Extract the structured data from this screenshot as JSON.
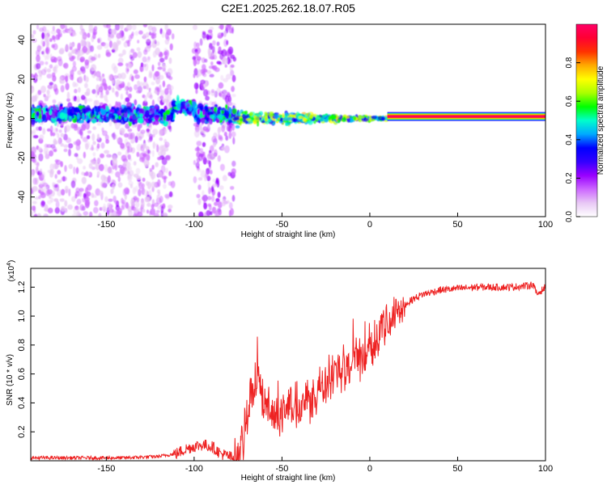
{
  "chart_data": [
    {
      "type": "heatmap",
      "title": "C2E1.2025.262.18.07.R05",
      "xlabel": "Height of straight line (km)",
      "ylabel": "Frequency (Hz)",
      "xlim": [
        -193,
        100
      ],
      "ylim": [
        -50,
        48
      ],
      "xticks": [
        -150,
        -100,
        -50,
        0,
        50,
        100
      ],
      "yticks": [
        -40,
        -20,
        0,
        20,
        40
      ],
      "colorbar": {
        "label": "Normalized spectral amplitude",
        "range": [
          0,
          1
        ],
        "ticks": [
          "0.0",
          "0.2",
          "0.4",
          "0.6",
          "0.8"
        ],
        "colors": [
          "#ffffff",
          "#e8c8f5",
          "#cc66ff",
          "#9900ff",
          "#3300ff",
          "#0000ff",
          "#00aaff",
          "#00ffcc",
          "#00ff00",
          "#aaff00",
          "#ffff00",
          "#ffaa00",
          "#ff3300",
          "#ff0033",
          "#ff0066"
        ]
      },
      "regions": [
        {
          "name": "diffuse broadband noise",
          "x_range": [
            -193,
            -112
          ],
          "freq_range": [
            -50,
            48
          ],
          "amplitude": 0.1
        },
        {
          "name": "diffuse broadband noise",
          "x_range": [
            -100,
            -77
          ],
          "freq_range": [
            -50,
            48
          ],
          "amplitude": 0.12
        },
        {
          "name": "central emission band",
          "x_range": [
            -193,
            -77
          ],
          "freq_center": 2,
          "amplitude": 0.3
        },
        {
          "name": "converging trace",
          "x_range": [
            -77,
            10
          ],
          "freq_center": 0,
          "amplitude": 0.6
        },
        {
          "name": "carrier line",
          "x_range": [
            10,
            100
          ],
          "freq_center": 1,
          "amplitude": 1.0
        }
      ]
    },
    {
      "type": "line",
      "xlabel": "Height of straight line (km)",
      "ylabel": "SNR (10 * v/v)",
      "y_multiplier": "(x10^4)",
      "xlim": [
        -193,
        100
      ],
      "ylim": [
        0,
        1.33
      ],
      "xticks": [
        -150,
        -100,
        -50,
        0,
        50,
        100
      ],
      "yticks": [
        "0.2",
        "0.4",
        "0.6",
        "0.8",
        "1.0",
        "1.2"
      ],
      "series": [
        {
          "name": "SNR",
          "color": "#ee2222",
          "x": [
            -193,
            -180,
            -160,
            -140,
            -120,
            -110,
            -105,
            -100,
            -95,
            -90,
            -85,
            -80,
            -78,
            -75,
            -72,
            -70,
            -68,
            -65,
            -62,
            -60,
            -55,
            -50,
            -45,
            -40,
            -35,
            -30,
            -25,
            -20,
            -15,
            -10,
            -5,
            0,
            5,
            10,
            15,
            20,
            25,
            30,
            40,
            50,
            60,
            70,
            80,
            90,
            93,
            95,
            100
          ],
          "y": [
            0.02,
            0.02,
            0.02,
            0.02,
            0.03,
            0.05,
            0.08,
            0.1,
            0.11,
            0.1,
            0.05,
            0.03,
            0.02,
            0.03,
            0.12,
            0.3,
            0.45,
            0.55,
            0.45,
            0.35,
            0.32,
            0.33,
            0.38,
            0.4,
            0.43,
            0.48,
            0.55,
            0.6,
            0.65,
            0.7,
            0.72,
            0.8,
            0.88,
            0.95,
            1.02,
            1.08,
            1.12,
            1.15,
            1.18,
            1.19,
            1.2,
            1.2,
            1.2,
            1.21,
            1.22,
            1.15,
            1.2
          ]
        }
      ]
    }
  ]
}
